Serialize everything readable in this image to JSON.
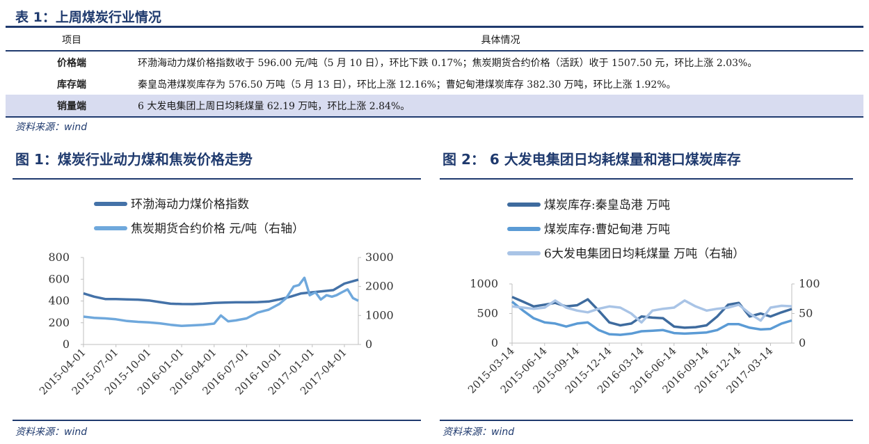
{
  "table": {
    "title": "表 1：上周煤炭行业情况",
    "headers": [
      "项目",
      "具体情况"
    ],
    "rows": [
      [
        "价格端",
        "环渤海动力煤价格指数收于 596.00 元/吨（5 月 10 日），环比下跌 0.17%；焦炭期货合约价格（活跃）收于 1507.50 元，环比上涨 2.03%。"
      ],
      [
        "库存端",
        "秦皇岛港煤炭库存为 576.50 万吨（5 月 13 日），环比上涨 12.16%；曹妃甸港煤炭库存 382.30 万吨，环比上涨 1.92%。"
      ],
      [
        "销量端",
        "6 大发电集团上周日均耗煤量 62.19 万吨，环比上涨 2.84%。"
      ]
    ],
    "source": "资料来源：wind"
  },
  "fig1": {
    "title": "图 1：煤炭行业动力煤和焦炭价格走势",
    "source": "资料来源：wind"
  },
  "fig2": {
    "title": "图 2：  6 大发电集团日均耗煤量和港口煤炭库存",
    "source": "资料来源：wind"
  },
  "chart_data": [
    {
      "type": "line",
      "grid": false,
      "legend_position": "top-left",
      "xticks": [
        "2015-04-01",
        "2015-07-01",
        "2015-10-01",
        "2016-01-01",
        "2016-04-01",
        "2016-07-01",
        "2016-10-01",
        "2017-01-01",
        "2017-04-01"
      ],
      "y_left": {
        "lim": [
          0,
          800
        ],
        "ticks": [
          0,
          200,
          400,
          600,
          800
        ]
      },
      "y_right": {
        "lim": [
          0,
          3000
        ],
        "ticks": [
          0,
          1000,
          2000,
          3000
        ]
      },
      "series": [
        {
          "name": "环渤海动力煤价格指数",
          "axis": "left",
          "color": "#4472a8",
          "x": [
            "2015-04-01",
            "2015-05-01",
            "2015-06-01",
            "2015-07-01",
            "2015-08-01",
            "2015-09-01",
            "2015-10-01",
            "2015-11-01",
            "2015-12-01",
            "2016-01-01",
            "2016-02-01",
            "2016-03-01",
            "2016-04-01",
            "2016-05-01",
            "2016-06-01",
            "2016-07-01",
            "2016-08-01",
            "2016-09-01",
            "2016-10-01",
            "2016-11-01",
            "2016-12-01",
            "2017-01-01",
            "2017-02-01",
            "2017-03-01",
            "2017-04-01",
            "2017-05-10"
          ],
          "y": [
            470,
            440,
            418,
            418,
            415,
            412,
            405,
            390,
            375,
            372,
            371,
            375,
            383,
            386,
            388,
            388,
            390,
            395,
            415,
            440,
            470,
            480,
            490,
            500,
            560,
            596
          ]
        },
        {
          "name": "焦炭期货合约价格 元/吨（右轴）",
          "axis": "right",
          "color": "#6fa8dc",
          "x": [
            "2015-04-01",
            "2015-05-01",
            "2015-06-01",
            "2015-07-01",
            "2015-08-01",
            "2015-09-01",
            "2015-10-01",
            "2015-11-01",
            "2015-12-01",
            "2016-01-01",
            "2016-02-01",
            "2016-03-01",
            "2016-04-01",
            "2016-04-20",
            "2016-05-10",
            "2016-06-01",
            "2016-07-01",
            "2016-08-01",
            "2016-09-01",
            "2016-10-01",
            "2016-10-20",
            "2016-11-10",
            "2016-11-25",
            "2016-12-10",
            "2016-12-25",
            "2017-01-10",
            "2017-01-25",
            "2017-02-10",
            "2017-02-25",
            "2017-03-10",
            "2017-03-25",
            "2017-04-10",
            "2017-04-25",
            "2017-05-10"
          ],
          "y": [
            960,
            920,
            900,
            870,
            810,
            780,
            760,
            730,
            680,
            640,
            660,
            680,
            720,
            1000,
            800,
            830,
            900,
            1100,
            1200,
            1400,
            1600,
            2000,
            2050,
            2300,
            1700,
            1800,
            1550,
            1700,
            1650,
            1700,
            1800,
            1900,
            1600,
            1507.5
          ]
        }
      ]
    },
    {
      "type": "line",
      "grid": false,
      "legend_position": "top-left",
      "xticks": [
        "2015-03-14",
        "2015-06-14",
        "2015-09-14",
        "2015-12-14",
        "2016-03-14",
        "2016-06-14",
        "2016-09-14",
        "2016-12-14",
        "2017-03-14"
      ],
      "y_left": {
        "lim": [
          0,
          1000
        ],
        "ticks": [
          0,
          500,
          1000
        ]
      },
      "y_right": {
        "lim": [
          0,
          100
        ],
        "ticks": [
          0,
          50,
          100
        ]
      },
      "series": [
        {
          "name": "煤炭库存:秦皇岛港 万吨",
          "axis": "left",
          "color": "#3e6b9e",
          "x": [
            "2015-03-14",
            "2015-04-14",
            "2015-05-14",
            "2015-06-14",
            "2015-07-14",
            "2015-08-14",
            "2015-09-14",
            "2015-10-14",
            "2015-11-14",
            "2015-12-14",
            "2016-01-14",
            "2016-02-14",
            "2016-03-14",
            "2016-04-14",
            "2016-05-14",
            "2016-06-14",
            "2016-07-14",
            "2016-08-14",
            "2016-09-14",
            "2016-10-14",
            "2016-11-14",
            "2016-12-14",
            "2017-01-14",
            "2017-02-14",
            "2017-03-14",
            "2017-04-14",
            "2017-05-13"
          ],
          "y": [
            780,
            700,
            620,
            650,
            680,
            620,
            640,
            740,
            550,
            350,
            300,
            330,
            450,
            430,
            420,
            280,
            260,
            270,
            300,
            450,
            650,
            680,
            450,
            500,
            450,
            520,
            576.5
          ]
        },
        {
          "name": "煤炭库存:曹妃甸港 万吨",
          "axis": "left",
          "color": "#5b9bd5",
          "x": [
            "2015-03-14",
            "2015-04-14",
            "2015-05-14",
            "2015-06-14",
            "2015-07-14",
            "2015-08-14",
            "2015-09-14",
            "2015-10-14",
            "2015-11-14",
            "2015-12-14",
            "2016-01-14",
            "2016-02-14",
            "2016-03-14",
            "2016-04-14",
            "2016-05-14",
            "2016-06-14",
            "2016-07-14",
            "2016-08-14",
            "2016-09-14",
            "2016-10-14",
            "2016-11-14",
            "2016-12-14",
            "2017-01-14",
            "2017-02-14",
            "2017-03-14",
            "2017-04-14",
            "2017-05-13"
          ],
          "y": [
            700,
            550,
            420,
            350,
            330,
            280,
            330,
            350,
            220,
            150,
            140,
            160,
            200,
            210,
            220,
            170,
            160,
            170,
            180,
            220,
            320,
            320,
            260,
            230,
            240,
            330,
            382.3
          ]
        },
        {
          "name": "6大发电集团日均耗煤量 万吨（右轴）",
          "axis": "right",
          "color": "#a9c4e6",
          "x": [
            "2015-03-14",
            "2015-04-14",
            "2015-05-14",
            "2015-06-14",
            "2015-07-14",
            "2015-08-14",
            "2015-09-14",
            "2015-10-14",
            "2015-11-14",
            "2015-12-14",
            "2016-01-14",
            "2016-02-14",
            "2016-03-14",
            "2016-04-14",
            "2016-05-14",
            "2016-06-14",
            "2016-07-14",
            "2016-08-14",
            "2016-09-14",
            "2016-10-14",
            "2016-11-14",
            "2016-12-14",
            "2017-01-14",
            "2017-02-14",
            "2017-03-14",
            "2017-04-14",
            "2017-05-13"
          ],
          "y": [
            62,
            60,
            58,
            60,
            72,
            60,
            55,
            52,
            58,
            62,
            60,
            50,
            35,
            55,
            58,
            60,
            72,
            62,
            55,
            58,
            60,
            65,
            50,
            38,
            60,
            63,
            62.19
          ]
        }
      ]
    }
  ]
}
